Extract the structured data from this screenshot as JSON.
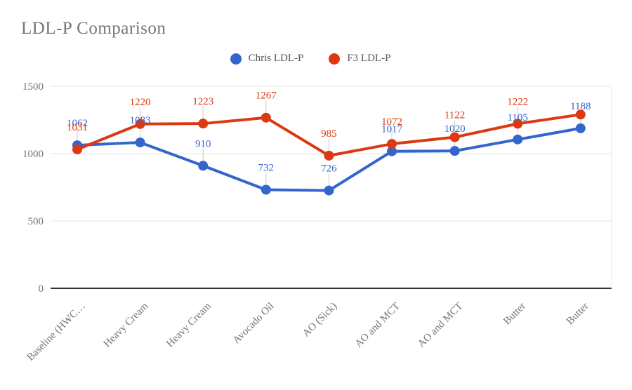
{
  "title": "LDL-P Comparison",
  "colors": {
    "chris_blue": "#3366CC",
    "f3_red": "#DC3912",
    "grid_line": "#E6E6E6",
    "axis_line": "#333333",
    "tick_text": "#757575",
    "legend_text": "#595959",
    "label_connector": "#C9C9C9"
  },
  "legend": {
    "items": [
      {
        "label": "Chris LDL-P",
        "color": "#3366CC"
      },
      {
        "label": "F3 LDL-P",
        "color": "#DC3912"
      }
    ]
  },
  "y_axis": {
    "ticks": [
      1500,
      1000,
      500,
      0
    ],
    "min": 0,
    "max": 1500
  },
  "chart_data": {
    "type": "line",
    "title": "LDL-P Comparison",
    "legend_position": "top",
    "grid": "horizontal",
    "xlabel": "",
    "ylabel": "",
    "ylim": [
      0,
      1500
    ],
    "y_ticks": [
      0,
      500,
      1000,
      1500
    ],
    "categories": [
      "Baseline (HWC…",
      "Heavy Cream",
      "Heavy Cream",
      "Avocado Oil",
      "AO (Sick)",
      "AO and MCT",
      "AO and MCT",
      "Butter",
      "Butter"
    ],
    "series": [
      {
        "name": "Chris LDL-P",
        "color": "#3366CC",
        "values": [
          1062,
          1083,
          910,
          732,
          726,
          1017,
          1020,
          1105,
          1188
        ],
        "point_labels": [
          "1062",
          "1083",
          "910",
          "732",
          "726",
          "1017",
          "1020",
          "1105",
          "1188"
        ]
      },
      {
        "name": "F3 LDL-P",
        "color": "#DC3912",
        "values": [
          1031,
          1220,
          1223,
          1267,
          985,
          1072,
          1122,
          1222,
          1290
        ],
        "point_labels": [
          "1031",
          "1220",
          "1223",
          "1267",
          "985",
          "1072",
          "1122",
          "1222",
          ""
        ],
        "estimated_indices": [
          8
        ]
      }
    ]
  }
}
